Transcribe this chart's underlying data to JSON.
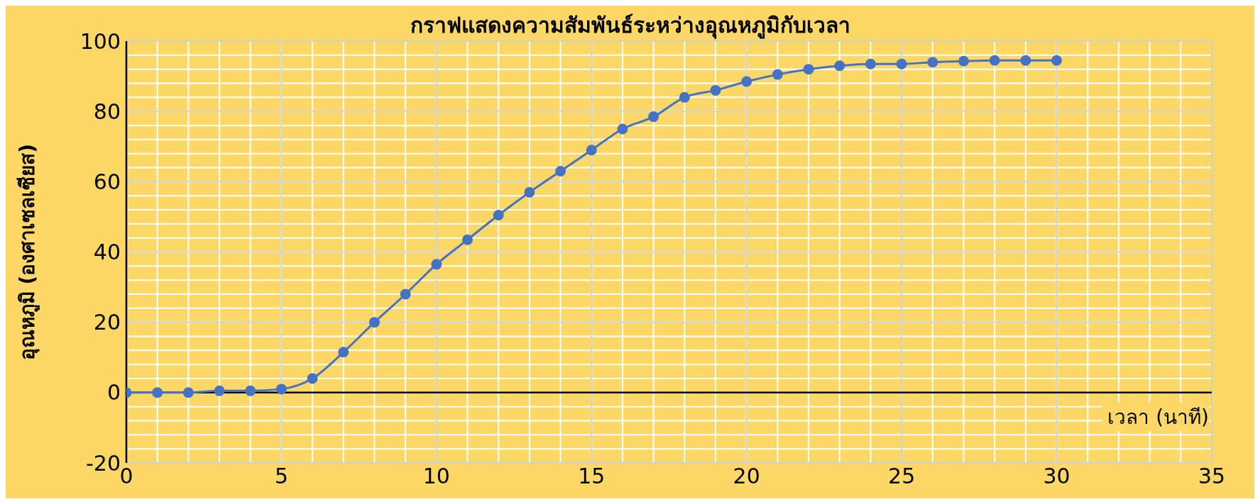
{
  "chart_data": {
    "type": "line",
    "title": "กราฟแสดงความสัมพันธ์ระหว่างอุณหภูมิกับเวลา",
    "xlabel": "เวลา (นาที)",
    "ylabel": "อุณหภูมิ (องศาเซลเซียส)",
    "x": [
      0,
      1,
      2,
      3,
      4,
      5,
      6,
      7,
      8,
      9,
      10,
      11,
      12,
      13,
      14,
      15,
      16,
      17,
      18,
      19,
      20,
      21,
      22,
      23,
      24,
      25,
      26,
      27,
      28,
      29,
      30
    ],
    "series": [
      {
        "color": "#4472c4",
        "values": [
          0,
          0,
          0,
          0.5,
          0.5,
          1,
          4,
          11.5,
          20,
          28,
          36.5,
          43.5,
          50.5,
          57,
          63,
          69,
          75,
          78.5,
          84,
          86,
          88.5,
          90.5,
          92,
          93,
          93.5,
          93.5,
          94,
          94.3,
          94.5,
          94.5,
          94.5
        ]
      }
    ],
    "xlim": [
      0,
      35
    ],
    "xticks": [
      0,
      5,
      10,
      15,
      20,
      25,
      30,
      35
    ],
    "ylim": [
      -20,
      100
    ],
    "yticks": [
      -20,
      0,
      20,
      40,
      60,
      80,
      100
    ],
    "grid": true,
    "marker": "circle",
    "line_style": "solid"
  }
}
